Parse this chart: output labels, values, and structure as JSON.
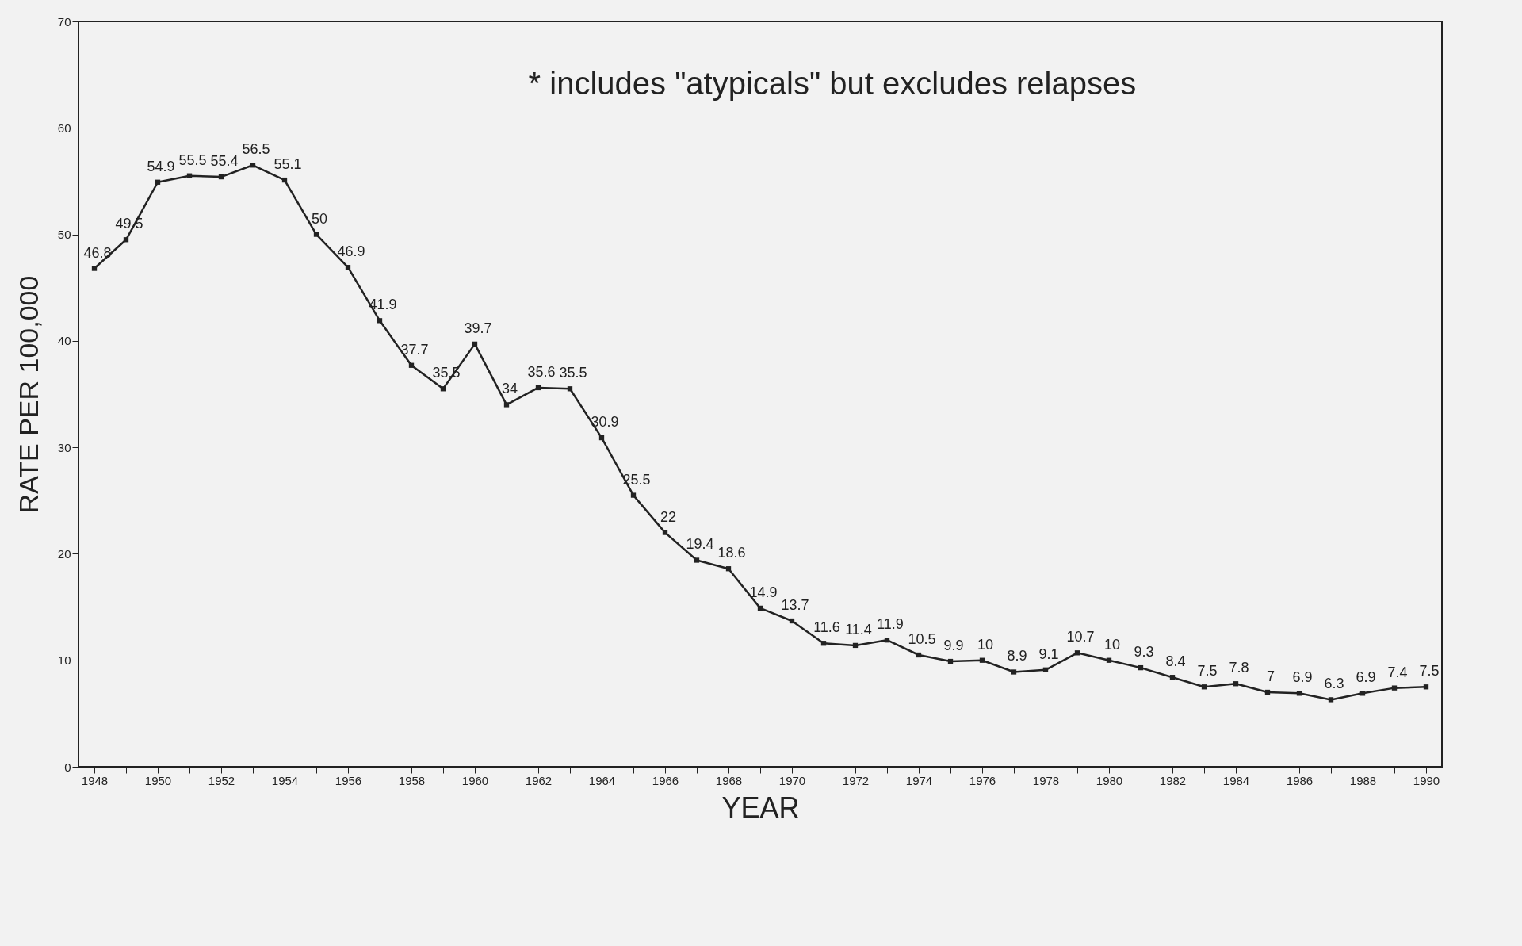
{
  "chart_data": {
    "type": "line",
    "xlabel": "YEAR",
    "ylabel": "RATE PER 100,000",
    "annotations": [
      "* includes \"atypicals\" but excludes relapses"
    ],
    "x": [
      1948,
      1949,
      1950,
      1951,
      1952,
      1953,
      1954,
      1955,
      1956,
      1957,
      1958,
      1959,
      1960,
      1961,
      1962,
      1963,
      1964,
      1965,
      1966,
      1967,
      1968,
      1969,
      1970,
      1971,
      1972,
      1973,
      1974,
      1975,
      1976,
      1977,
      1978,
      1979,
      1980,
      1981,
      1982,
      1983,
      1984,
      1985,
      1986,
      1987,
      1988,
      1989,
      1990
    ],
    "series": [
      {
        "color": "#222222",
        "values": [
          46.8,
          49.5,
          54.9,
          55.5,
          55.4,
          56.5,
          55.1,
          50,
          46.9,
          41.9,
          37.7,
          35.5,
          39.7,
          34,
          35.6,
          35.5,
          30.9,
          25.5,
          22,
          19.4,
          18.6,
          14.9,
          13.7,
          11.6,
          11.4,
          11.9,
          10.5,
          9.9,
          10,
          8.9,
          9.1,
          10.7,
          10,
          9.3,
          8.4,
          7.5,
          7.8,
          7,
          6.9,
          6.3,
          6.9,
          7.4,
          7.5
        ]
      }
    ],
    "data_labels": true,
    "marker": "square",
    "line_style": "solid",
    "grid": false,
    "xlim": [
      1947.5,
      1990.5
    ],
    "ylim": [
      0,
      70
    ],
    "yticks": [
      0,
      10,
      20,
      30,
      40,
      50,
      60,
      70
    ],
    "xticks": [
      1948,
      {
        "value": 1949,
        "label": null
      },
      1950,
      {
        "value": 1951,
        "label": null
      },
      1952,
      {
        "value": 1953,
        "label": null
      },
      1954,
      {
        "value": 1955,
        "label": null
      },
      1956,
      {
        "value": 1957,
        "label": null
      },
      1958,
      {
        "value": 1959,
        "label": null
      },
      1960,
      {
        "value": 1961,
        "label": null
      },
      1962,
      {
        "value": 1963,
        "label": null
      },
      1964,
      {
        "value": 1965,
        "label": null
      },
      1966,
      {
        "value": 1967,
        "label": null
      },
      1968,
      {
        "value": 1969,
        "label": null
      },
      1970,
      {
        "value": 1971,
        "label": null
      },
      1972,
      {
        "value": 1973,
        "label": null
      },
      1974,
      {
        "value": 1975,
        "label": null
      },
      1976,
      {
        "value": 1977,
        "label": null
      },
      1978,
      {
        "value": 1979,
        "label": null
      },
      1980,
      {
        "value": 1981,
        "label": null
      },
      1982,
      {
        "value": 1983,
        "label": null
      },
      1984,
      {
        "value": 1985,
        "label": null
      },
      1986,
      {
        "value": 1987,
        "label": null
      },
      1988,
      {
        "value": 1989,
        "label": null
      },
      1990
    ]
  }
}
